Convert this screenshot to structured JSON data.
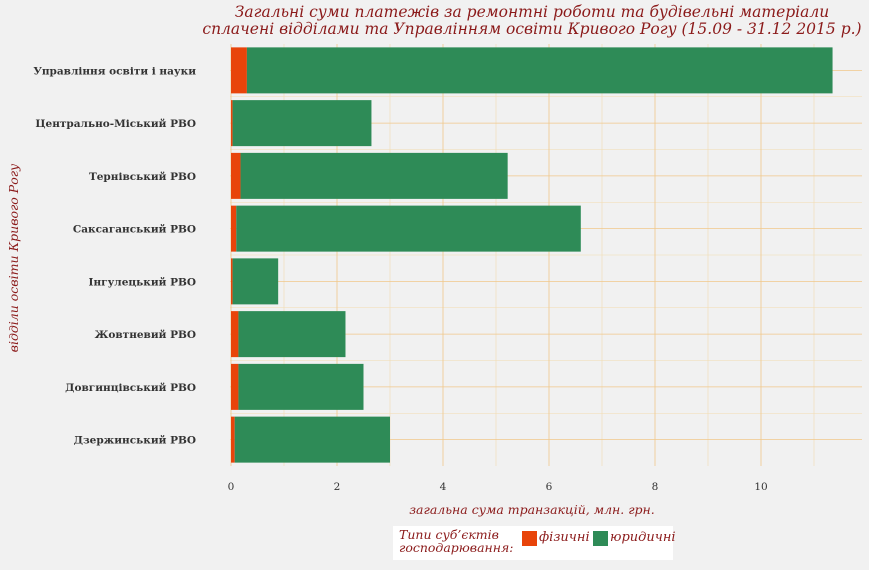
{
  "chart_data": {
    "type": "bar",
    "orientation": "horizontal",
    "stacked": true,
    "title": "Загальні суми платежів за ремонтні роботи та будівельні матеріали",
    "subtitle": "сплачені відділами та Управлінням освіти Кривого Рогу (15.09 - 31.12 2015 р.)",
    "xlabel": "загальна сума транзакцій, млн. грн.",
    "ylabel": "відділи освіти Кривого Рогу",
    "xlim": [
      0,
      11.7
    ],
    "xticks": [
      "0",
      "2",
      "4",
      "6",
      "8",
      "10"
    ],
    "grid": true,
    "legend_title": "Типи   суб’єктів господарювання:",
    "legend_position": "bottom",
    "categories": [
      "Управління освіти і науки",
      "Центрально-Міський РВО",
      "Тернівський РВО",
      "Саксаганський РВО",
      "Інгулецький РВО",
      "Жовтневий РВО",
      "Довгинцівський РВО",
      "Дзержинський РВО"
    ],
    "series": [
      {
        "name": "фізичні",
        "color": "#e8440a",
        "values": [
          0.3,
          0.03,
          0.18,
          0.1,
          0.03,
          0.14,
          0.14,
          0.07
        ]
      },
      {
        "name": "юридичні",
        "color": "#2e8b57",
        "values": [
          11.05,
          2.62,
          5.04,
          6.5,
          0.86,
          2.02,
          2.36,
          2.93
        ]
      }
    ]
  }
}
